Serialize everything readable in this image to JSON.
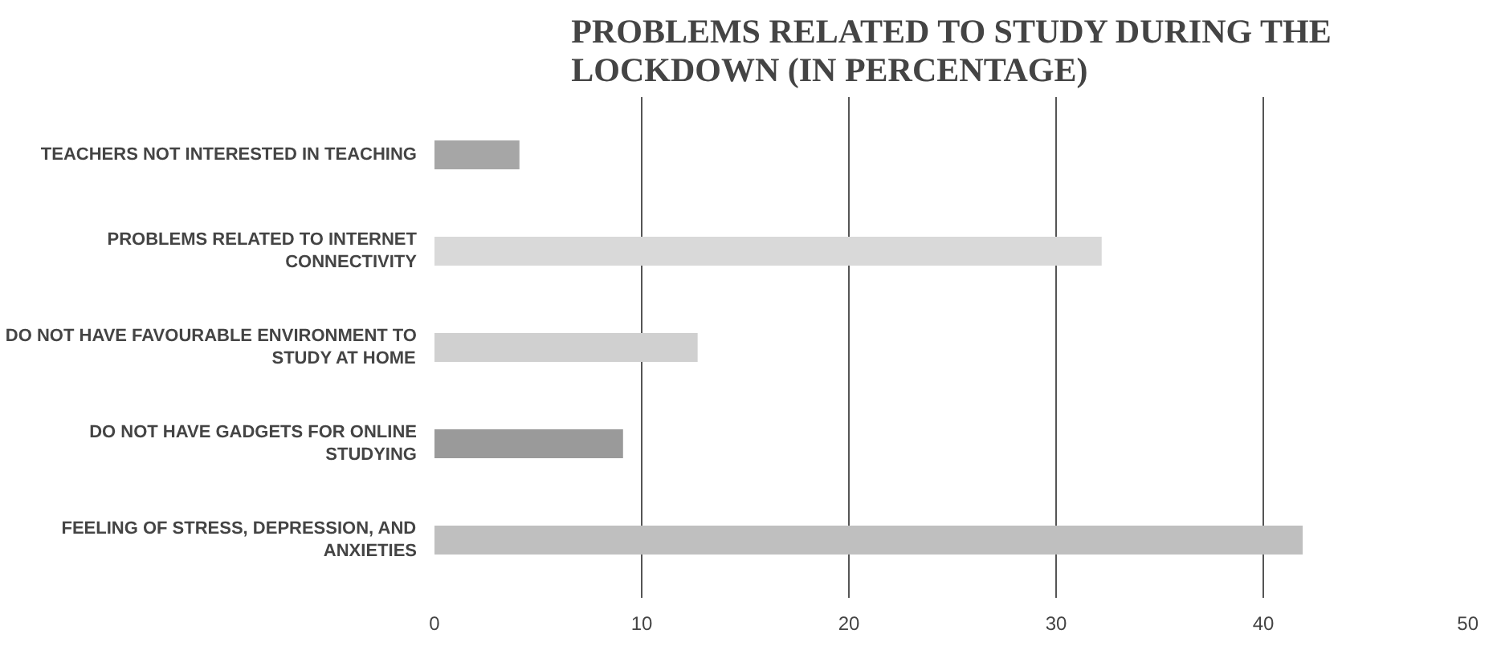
{
  "chart_data": {
    "type": "bar",
    "orientation": "horizontal",
    "title": "PROBLEMS RELATED TO STUDY DURING THE LOCKDOWN (IN PERCENTAGE)",
    "categories": [
      "TEACHERS NOT INTERESTED IN TEACHING",
      "PROBLEMS RELATED TO INTERNET CONNECTIVITY",
      "DO NOT HAVE FAVOURABLE ENVIRONMENT TO STUDY AT HOME",
      "DO NOT HAVE GADGETS FOR ONLINE STUDYING",
      "FEELING OF STRESS, DEPRESSION, AND ANXIETIES"
    ],
    "values": [
      4.1,
      32.2,
      12.7,
      9.1,
      41.9
    ],
    "colors": [
      "#a6a6a6",
      "#d9d9d9",
      "#d0d0d0",
      "#9a9a9a",
      "#bfbfbf"
    ],
    "xlim": [
      0,
      50
    ],
    "xticks": [
      0,
      10,
      20,
      30,
      40,
      50
    ],
    "grid": "x"
  }
}
